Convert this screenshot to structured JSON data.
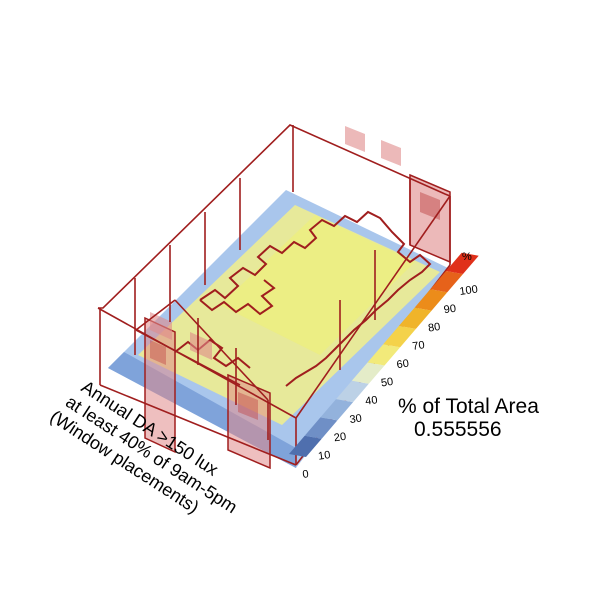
{
  "caption": {
    "lines": [
      "Annual DA >150 lux",
      "at least 40% of 9am-5pm",
      "(Window placements)"
    ]
  },
  "metric": {
    "label": "% of Total Area",
    "value": "0.555556"
  },
  "legend": {
    "unit": "%",
    "ticks": [
      "0",
      "10",
      "20",
      "30",
      "40",
      "50",
      "60",
      "70",
      "80",
      "90",
      "100"
    ],
    "colors": [
      "#4f6fae",
      "#6f8fc6",
      "#93b2dc",
      "#bcd1e6",
      "#e4ecc8",
      "#f2ea7a",
      "#f4d24a",
      "#f0b42a",
      "#ec8c1a",
      "#e6621a",
      "#e0301a"
    ]
  },
  "colors": {
    "wireframe": "#a01e1e",
    "window_fill": "#e08a8a",
    "floor_main": "#eaeb96",
    "floor_edge": "#a9c6ec"
  }
}
